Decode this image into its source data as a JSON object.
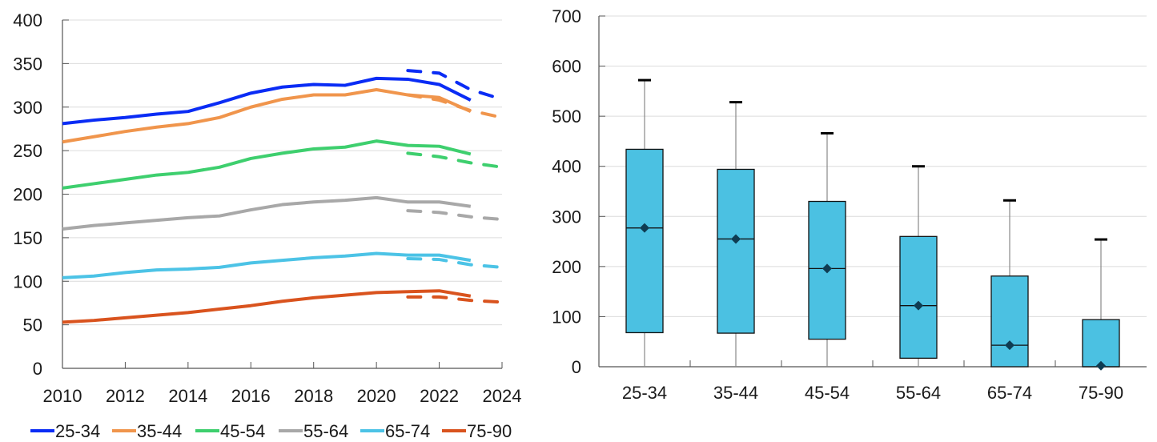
{
  "chart_data": [
    {
      "type": "line",
      "title": "",
      "xlabel": "",
      "ylabel": "",
      "xlim": [
        2010,
        2024
      ],
      "ylim": [
        0,
        400
      ],
      "x_ticks": [
        "2010",
        "2012",
        "2014",
        "2016",
        "2018",
        "2020",
        "2022",
        "2024"
      ],
      "y_ticks": [
        "0",
        "50",
        "100",
        "150",
        "200",
        "250",
        "300",
        "350",
        "400"
      ],
      "grid": true,
      "legend_position": "bottom",
      "x": [
        2010,
        2011,
        2012,
        2013,
        2014,
        2015,
        2016,
        2017,
        2018,
        2019,
        2020,
        2021,
        2022,
        2023
      ],
      "dashed_x": [
        2021,
        2022,
        2023,
        2024
      ],
      "series": [
        {
          "name": "25-34",
          "color": "#0a2cf5",
          "values": [
            281,
            285,
            288,
            292,
            295,
            305,
            316,
            323,
            326,
            325,
            333,
            332,
            326,
            308
          ],
          "dashed_values": [
            342,
            339,
            320,
            309
          ]
        },
        {
          "name": "35-44",
          "color": "#f0954c",
          "values": [
            260,
            266,
            272,
            277,
            281,
            288,
            300,
            309,
            314,
            314,
            320,
            314,
            311,
            295
          ],
          "dashed_values": [
            314,
            308,
            296,
            288
          ]
        },
        {
          "name": "45-54",
          "color": "#3ecf6e",
          "values": [
            207,
            212,
            217,
            222,
            225,
            231,
            241,
            247,
            252,
            254,
            261,
            256,
            255,
            246
          ],
          "dashed_values": [
            247,
            243,
            236,
            231
          ]
        },
        {
          "name": "55-64",
          "color": "#a8a8a8",
          "values": [
            160,
            164,
            167,
            170,
            173,
            175,
            182,
            188,
            191,
            193,
            196,
            191,
            191,
            186
          ],
          "dashed_values": [
            181,
            179,
            174,
            171
          ]
        },
        {
          "name": "65-74",
          "color": "#4cc3e6",
          "values": [
            104,
            106,
            110,
            113,
            114,
            116,
            121,
            124,
            127,
            129,
            132,
            130,
            130,
            124
          ],
          "dashed_values": [
            126,
            125,
            119,
            116
          ]
        },
        {
          "name": "75-90",
          "color": "#d9531e",
          "values": [
            53,
            55,
            58,
            61,
            64,
            68,
            72,
            77,
            81,
            84,
            87,
            88,
            89,
            83
          ],
          "dashed_values": [
            82,
            82,
            78,
            76
          ]
        }
      ]
    },
    {
      "type": "box",
      "title": "",
      "xlabel": "",
      "ylabel": "",
      "ylim": [
        0,
        700
      ],
      "y_ticks": [
        "0",
        "100",
        "200",
        "300",
        "400",
        "500",
        "600",
        "700"
      ],
      "grid": true,
      "box_color": "#4bc1e2",
      "mean_color": "#0f3c52",
      "categories": [
        "25-34",
        "35-44",
        "45-54",
        "55-64",
        "65-74",
        "75-90"
      ],
      "boxes": [
        {
          "min": 0,
          "q1": 68,
          "median": 277,
          "q3": 434,
          "max": 572,
          "mean": 277
        },
        {
          "min": 0,
          "q1": 67,
          "median": 255,
          "q3": 394,
          "max": 528,
          "mean": 255
        },
        {
          "min": 0,
          "q1": 55,
          "median": 196,
          "q3": 330,
          "max": 466,
          "mean": 196
        },
        {
          "min": 0,
          "q1": 17,
          "median": 122,
          "q3": 260,
          "max": 400,
          "mean": 122
        },
        {
          "min": 0,
          "q1": 0,
          "median": 43,
          "q3": 181,
          "max": 332,
          "mean": 43
        },
        {
          "min": 0,
          "q1": 0,
          "median": 0,
          "q3": 94,
          "max": 254,
          "mean": 2
        }
      ]
    }
  ]
}
